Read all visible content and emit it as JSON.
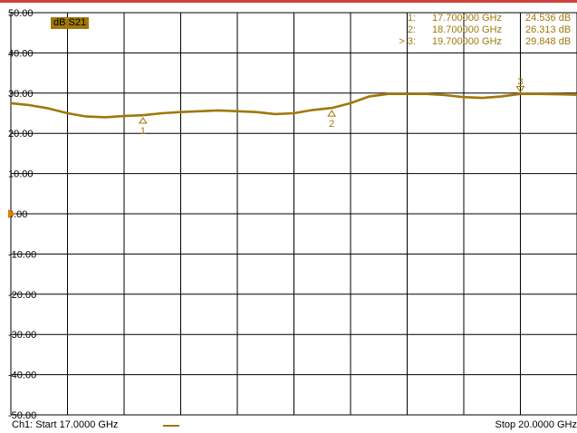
{
  "trace_label": "dB S21",
  "footer": {
    "start": "Ch1: Start  17.0000 GHz",
    "stop": "Stop  20.0000 GHz"
  },
  "markers": [
    {
      "id": "1:",
      "freq": "17.700000 GHz",
      "value": "24.536 dB"
    },
    {
      "id": "2:",
      "freq": "18.700000 GHz",
      "value": "26.313 dB"
    },
    {
      "id": "> 3:",
      "freq": "19.700000 GHz",
      "value": "29.848 dB"
    }
  ],
  "colors": {
    "trace": "#a0780a",
    "grid": "#000000",
    "accent_bar": "#d0413a",
    "reference_arrow": "#e07b00"
  },
  "chart_data": {
    "type": "line",
    "title": "",
    "xlabel": "",
    "ylabel": "",
    "xlim": [
      17.0,
      20.0
    ],
    "ylim": [
      -50,
      50
    ],
    "y_ticks": [
      "50.00",
      "40.00",
      "30.00",
      "20.00",
      "10.00",
      "0.00",
      "-10.00",
      "-20.00",
      "-30.00",
      "-40.00",
      "-50.00"
    ],
    "grid": true,
    "reference_level": 0,
    "series": [
      {
        "x": [
          17.0,
          17.1,
          17.2,
          17.3,
          17.4,
          17.5,
          17.6,
          17.7,
          17.8,
          17.9,
          18.0,
          18.1,
          18.2,
          18.3,
          18.4,
          18.5,
          18.6,
          18.7,
          18.8,
          18.9,
          19.0,
          19.1,
          19.2,
          19.3,
          19.4,
          19.5,
          19.6,
          19.7,
          19.8,
          19.9,
          20.0
        ],
        "y": [
          27.5,
          27.0,
          26.2,
          25.0,
          24.2,
          24.0,
          24.3,
          24.5,
          25.0,
          25.3,
          25.5,
          25.7,
          25.5,
          25.3,
          24.8,
          25.0,
          25.8,
          26.3,
          27.5,
          29.2,
          29.8,
          29.8,
          29.8,
          29.5,
          29.0,
          28.8,
          29.2,
          29.8,
          29.8,
          29.7,
          29.6
        ]
      }
    ],
    "markers": [
      {
        "label": "1",
        "x": 17.7,
        "y": 24.536
      },
      {
        "label": "2",
        "x": 18.7,
        "y": 26.313
      },
      {
        "label": "3",
        "x": 19.7,
        "y": 29.848
      }
    ]
  }
}
